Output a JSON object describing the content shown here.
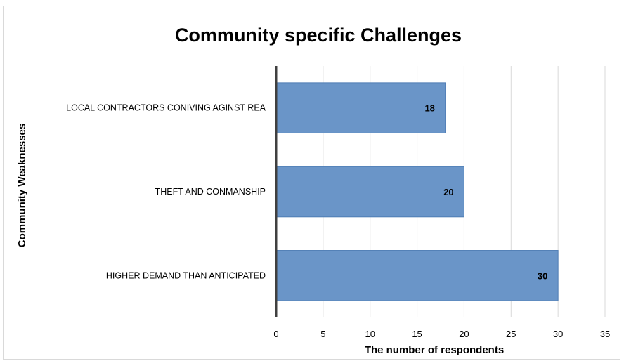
{
  "chart_data": {
    "type": "bar",
    "orientation": "horizontal",
    "title": "Community specific Challenges",
    "xlabel": "The number of respondents",
    "ylabel": "Community Weaknesses",
    "categories": [
      "LOCAL CONTRACTORS CONIVING AGINST REA",
      "THEFT AND CONMANSHIP",
      "HIGHER DEMAND THAN ANTICIPATED"
    ],
    "values": [
      18,
      20,
      30
    ],
    "data_labels": [
      "18",
      "20",
      "30"
    ],
    "xlim": [
      0,
      35
    ],
    "xticks": [
      "0",
      "5",
      "10",
      "15",
      "20",
      "25",
      "30",
      "35"
    ],
    "grid": "vertical",
    "legend": "none",
    "bar_color": "#6a95c8",
    "bar_edge_color": "#4f7db5"
  }
}
